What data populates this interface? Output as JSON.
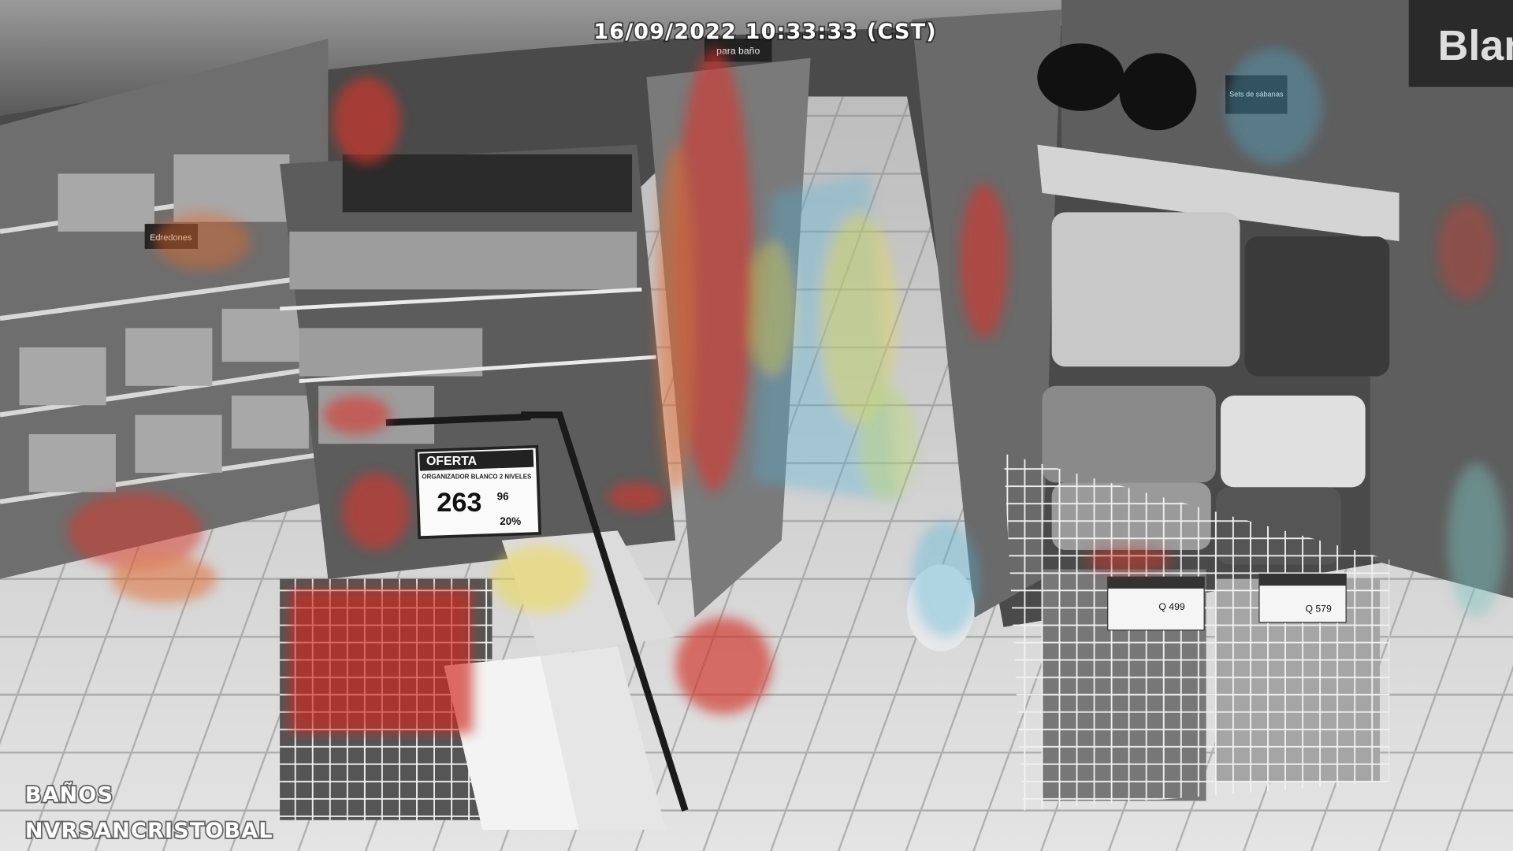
{
  "overlay": {
    "timestamp": "16/09/2022 10:33:33 (CST)",
    "camera_zone": "BAÑOS",
    "recorder": "NVRSANCRISTOBAL"
  },
  "signage": {
    "offer_title": "OFERTA",
    "offer_product": "ORGANIZADOR BLANCO 2 NIVELES",
    "offer_price": "263",
    "offer_cents": "96",
    "offer_discount": "20%",
    "left_section": "Edredones",
    "aisle_sign": "para baño",
    "right_section": "Blan",
    "right_small_sign": "Sets de sábanas",
    "price_tag_1": "Q 499",
    "price_tag_2": "Q 579"
  }
}
